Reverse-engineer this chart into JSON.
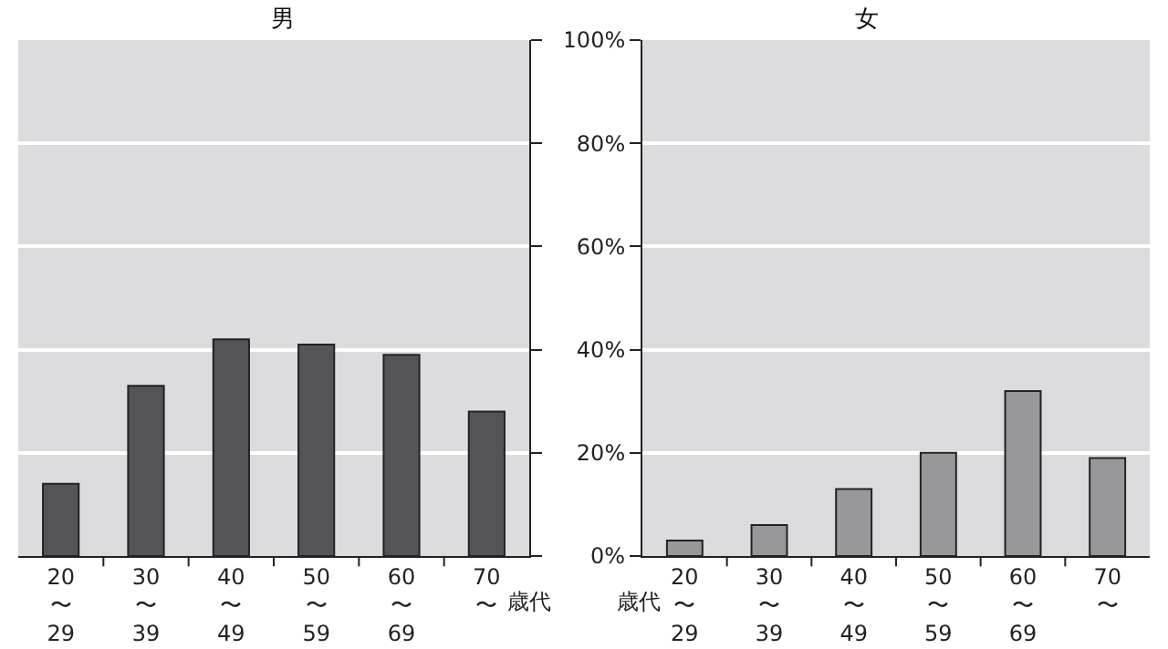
{
  "chart_data": [
    {
      "type": "bar",
      "title": "男",
      "xlabel": "歳代",
      "categories": [
        "20\n〜\n29",
        "30\n〜\n39",
        "40\n〜\n49",
        "50\n〜\n59",
        "60\n〜\n69",
        "70\n〜"
      ],
      "values": [
        14,
        33,
        42,
        41,
        39,
        28
      ],
      "color": "#545458",
      "ylim": [
        0,
        100
      ],
      "yticks": [
        {
          "value": 0,
          "label": null
        },
        {
          "value": 20,
          "label": null
        },
        {
          "value": 40,
          "label": null
        },
        {
          "value": 60,
          "label": null
        },
        {
          "value": 80,
          "label": null
        },
        {
          "value": 100,
          "label": null
        }
      ],
      "grid": "y",
      "tick_labels": "x"
    },
    {
      "type": "bar",
      "title": "女",
      "xlabel": "歳代",
      "categories": [
        "20\n〜\n29",
        "30\n〜\n39",
        "40\n〜\n49",
        "50\n〜\n59",
        "60\n〜\n69",
        "70\n〜"
      ],
      "values": [
        3,
        6,
        13,
        20,
        32,
        19
      ],
      "color": "#98989b",
      "ylim": [
        0,
        100
      ],
      "yticks": [
        {
          "value": 0,
          "label": "0%"
        },
        {
          "value": 20,
          "label": "20%"
        },
        {
          "value": 40,
          "label": "40%"
        },
        {
          "value": 60,
          "label": "60%"
        },
        {
          "value": 80,
          "label": "80%"
        },
        {
          "value": 100,
          "label": "100%"
        }
      ],
      "grid": "y"
    }
  ]
}
